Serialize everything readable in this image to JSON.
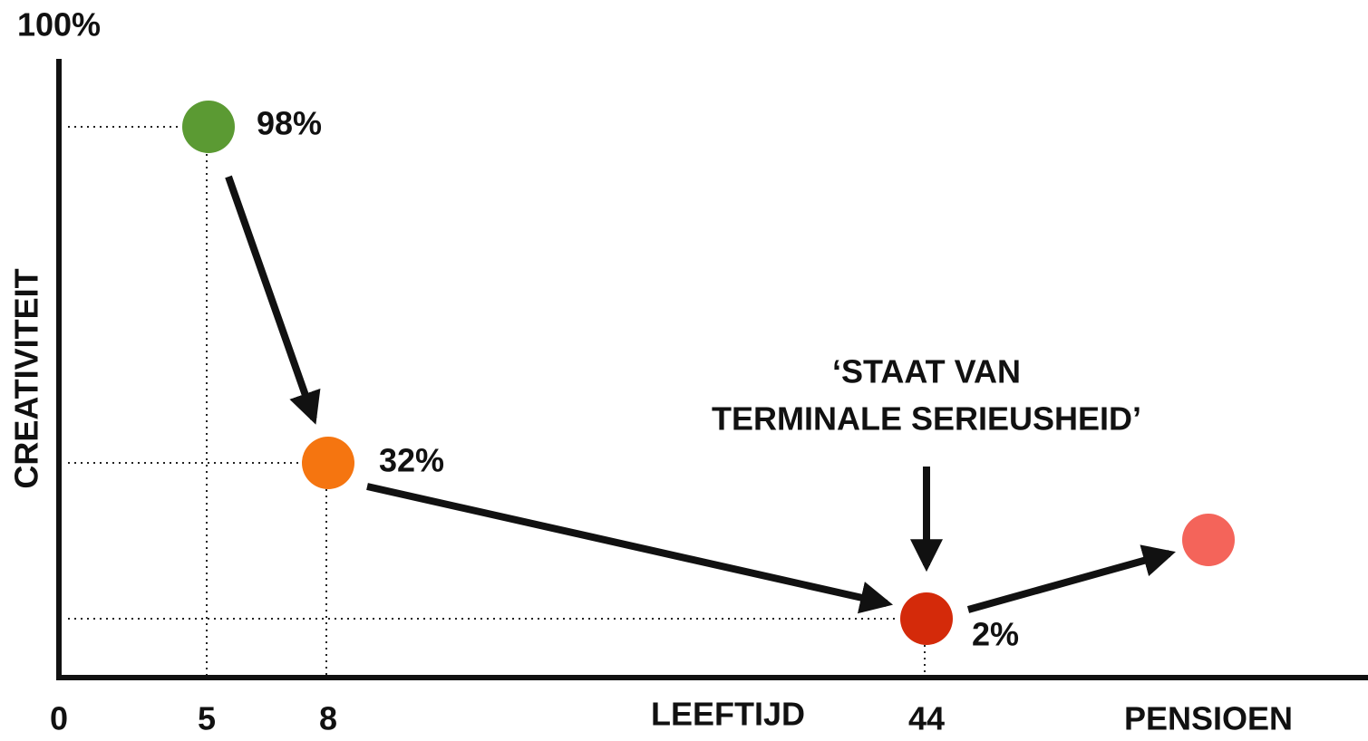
{
  "y_axis": {
    "label": "CREATIVITEIT",
    "top_label": "100%"
  },
  "x_axis": {
    "label": "LEEFTIJD",
    "ticks": [
      "0",
      "5",
      "8",
      "44",
      "PENSIOEN"
    ]
  },
  "points": [
    {
      "value_label": "98%",
      "color": "#5b9a33"
    },
    {
      "value_label": "32%",
      "color": "#f57510"
    },
    {
      "value_label": "2%",
      "color": "#d42a0a"
    },
    {
      "color": "#f4645a"
    }
  ],
  "annotation": [
    "‘STAAT VAN",
    "TERMINALE SERIEUSHEID’"
  ]
}
